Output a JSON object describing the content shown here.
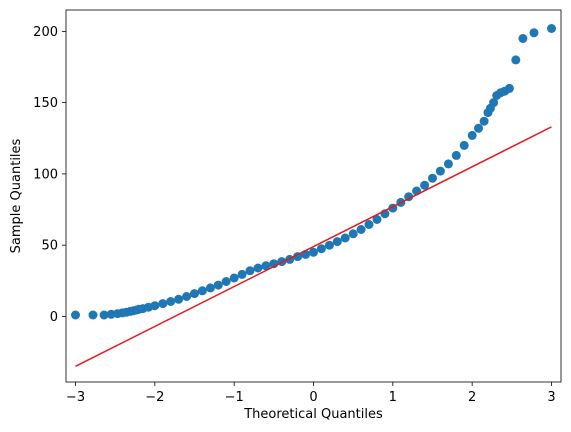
{
  "chart_data": {
    "type": "scatter",
    "xlabel": "Theoretical Quantiles",
    "ylabel": "Sample Quantiles",
    "xlim": [
      -3.12,
      3.12
    ],
    "ylim": [
      -46,
      215
    ],
    "x_ticks": [
      -3,
      -2,
      -1,
      0,
      1,
      2,
      3
    ],
    "y_ticks": [
      0,
      50,
      100,
      150,
      200
    ],
    "grid": false,
    "colors": {
      "points": "#1f77b4",
      "reference_line": "#e41a1c"
    },
    "series": [
      {
        "kind": "points",
        "x": [
          -3.0,
          -2.78,
          -2.64,
          -2.55,
          -2.47,
          -2.41,
          -2.36,
          -2.31,
          -2.27,
          -2.23,
          -2.2,
          -2.15,
          -2.08,
          -2.0,
          -1.9,
          -1.8,
          -1.7,
          -1.6,
          -1.5,
          -1.4,
          -1.3,
          -1.2,
          -1.1,
          -1.0,
          -0.9,
          -0.8,
          -0.7,
          -0.6,
          -0.5,
          -0.4,
          -0.3,
          -0.2,
          -0.1,
          0.0,
          0.1,
          0.2,
          0.3,
          0.4,
          0.5,
          0.6,
          0.7,
          0.8,
          0.9,
          1.0,
          1.1,
          1.2,
          1.3,
          1.4,
          1.5,
          1.6,
          1.7,
          1.8,
          1.9,
          2.0,
          2.08,
          2.15,
          2.2,
          2.23,
          2.27,
          2.31,
          2.36,
          2.41,
          2.47,
          2.55,
          2.64,
          2.78,
          3.0
        ],
        "y": [
          1,
          1,
          1,
          1.5,
          2,
          2.5,
          3,
          3.5,
          4,
          4.5,
          5,
          5.5,
          6.5,
          7.5,
          9,
          10.5,
          12,
          14,
          16,
          18,
          20,
          22,
          24.5,
          27,
          29.5,
          32,
          34,
          35.5,
          37,
          38.5,
          40,
          42,
          43.5,
          45,
          47.5,
          50,
          52.5,
          55,
          58,
          61,
          64.5,
          68,
          72,
          76,
          80,
          84,
          88,
          92,
          97,
          102,
          107,
          113,
          120,
          127,
          132,
          137,
          143,
          146,
          150,
          155,
          157,
          158,
          160,
          180,
          195,
          199,
          202
        ]
      },
      {
        "kind": "line",
        "x": [
          -3,
          3
        ],
        "y": [
          -35,
          133
        ]
      }
    ]
  }
}
